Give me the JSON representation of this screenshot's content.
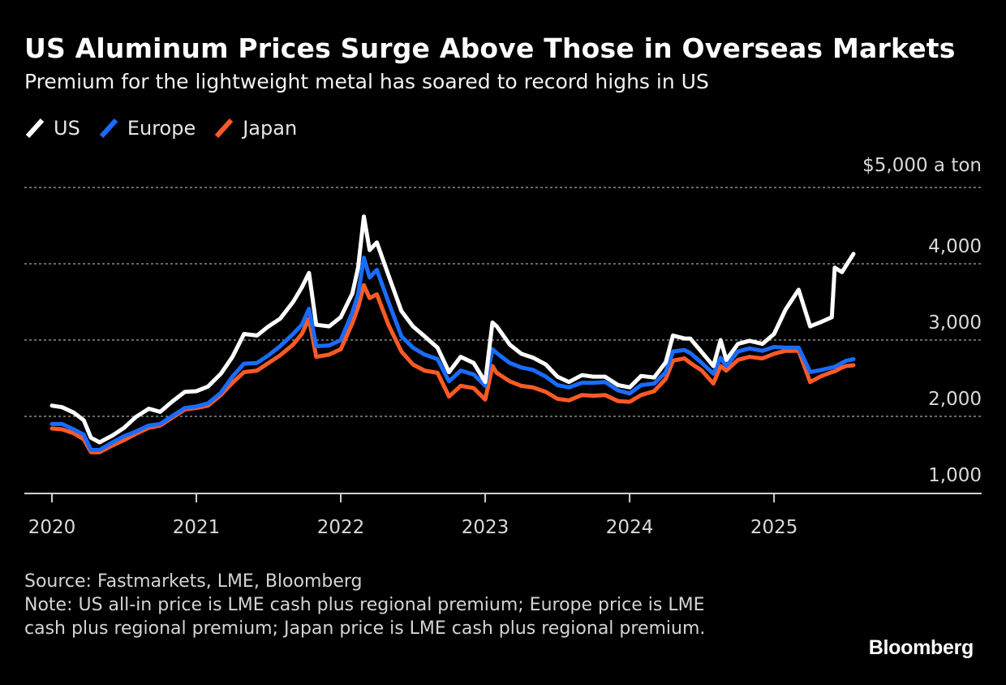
{
  "header": {
    "title": "US Aluminum Prices Surge Above Those in Overseas Markets",
    "subtitle": "Premium for the lightweight metal has soared to record highs in US"
  },
  "footer": {
    "source": "Source: Fastmarkets, LME, Bloomberg",
    "note": "Note: US all-in price is LME cash plus regional premium; Europe price is LME cash plus regional premium; Japan price is LME cash plus regional premium.",
    "brand": "Bloomberg"
  },
  "chart_data": {
    "type": "line",
    "title": "US Aluminum Prices Surge Above Those in Overseas Markets",
    "subtitle": "Premium for the lightweight metal has soared to record highs in US",
    "y_unit_label": "$5,000 a ton",
    "ylim": [
      1000,
      5000
    ],
    "y_ticks": [
      {
        "value": 5000,
        "label": ""
      },
      {
        "value": 4000,
        "label": "4,000"
      },
      {
        "value": 3000,
        "label": "3,000"
      },
      {
        "value": 2000,
        "label": "2,000"
      },
      {
        "value": 1000,
        "label": "1,000"
      }
    ],
    "x_ticks": [
      "2020",
      "2021",
      "2022",
      "2023",
      "2024",
      "2025"
    ],
    "xlim": [
      2020.0,
      2025.6
    ],
    "grid": true,
    "legend_position": "top-left",
    "series": [
      {
        "name": "US",
        "color": "#ffffff",
        "points": [
          [
            2020.0,
            2140
          ],
          [
            2020.07,
            2120
          ],
          [
            2020.15,
            2050
          ],
          [
            2020.22,
            1950
          ],
          [
            2020.27,
            1720
          ],
          [
            2020.33,
            1660
          ],
          [
            2020.42,
            1750
          ],
          [
            2020.5,
            1850
          ],
          [
            2020.58,
            1990
          ],
          [
            2020.67,
            2100
          ],
          [
            2020.75,
            2060
          ],
          [
            2020.83,
            2190
          ],
          [
            2020.92,
            2320
          ],
          [
            2021.0,
            2330
          ],
          [
            2021.08,
            2390
          ],
          [
            2021.17,
            2560
          ],
          [
            2021.25,
            2780
          ],
          [
            2021.33,
            3080
          ],
          [
            2021.42,
            3060
          ],
          [
            2021.5,
            3180
          ],
          [
            2021.58,
            3280
          ],
          [
            2021.67,
            3500
          ],
          [
            2021.73,
            3690
          ],
          [
            2021.78,
            3880
          ],
          [
            2021.83,
            3200
          ],
          [
            2021.92,
            3180
          ],
          [
            2022.0,
            3300
          ],
          [
            2022.08,
            3610
          ],
          [
            2022.12,
            3950
          ],
          [
            2022.16,
            4620
          ],
          [
            2022.2,
            4180
          ],
          [
            2022.25,
            4280
          ],
          [
            2022.33,
            3850
          ],
          [
            2022.42,
            3380
          ],
          [
            2022.5,
            3180
          ],
          [
            2022.58,
            3050
          ],
          [
            2022.67,
            2900
          ],
          [
            2022.75,
            2580
          ],
          [
            2022.83,
            2780
          ],
          [
            2022.92,
            2700
          ],
          [
            2023.0,
            2450
          ],
          [
            2023.05,
            3230
          ],
          [
            2023.08,
            3180
          ],
          [
            2023.17,
            2940
          ],
          [
            2023.25,
            2820
          ],
          [
            2023.33,
            2770
          ],
          [
            2023.42,
            2680
          ],
          [
            2023.5,
            2520
          ],
          [
            2023.58,
            2450
          ],
          [
            2023.67,
            2540
          ],
          [
            2023.75,
            2520
          ],
          [
            2023.83,
            2520
          ],
          [
            2023.92,
            2410
          ],
          [
            2024.0,
            2380
          ],
          [
            2024.08,
            2530
          ],
          [
            2024.17,
            2510
          ],
          [
            2024.25,
            2710
          ],
          [
            2024.3,
            3060
          ],
          [
            2024.38,
            3020
          ],
          [
            2024.42,
            3020
          ],
          [
            2024.5,
            2840
          ],
          [
            2024.58,
            2660
          ],
          [
            2024.63,
            3000
          ],
          [
            2024.67,
            2740
          ],
          [
            2024.75,
            2950
          ],
          [
            2024.83,
            2990
          ],
          [
            2024.92,
            2950
          ],
          [
            2025.0,
            3080
          ],
          [
            2025.08,
            3400
          ],
          [
            2025.17,
            3660
          ],
          [
            2025.25,
            3180
          ],
          [
            2025.33,
            3240
          ],
          [
            2025.4,
            3300
          ],
          [
            2025.42,
            3950
          ],
          [
            2025.47,
            3890
          ],
          [
            2025.5,
            3980
          ],
          [
            2025.55,
            4130
          ]
        ]
      },
      {
        "name": "Europe",
        "color": "#1a6cff",
        "points": [
          [
            2020.0,
            1900
          ],
          [
            2020.07,
            1900
          ],
          [
            2020.15,
            1830
          ],
          [
            2020.22,
            1760
          ],
          [
            2020.27,
            1560
          ],
          [
            2020.33,
            1560
          ],
          [
            2020.42,
            1660
          ],
          [
            2020.5,
            1740
          ],
          [
            2020.58,
            1800
          ],
          [
            2020.67,
            1880
          ],
          [
            2020.75,
            1900
          ],
          [
            2020.83,
            2000
          ],
          [
            2020.92,
            2110
          ],
          [
            2021.0,
            2130
          ],
          [
            2021.08,
            2170
          ],
          [
            2021.17,
            2310
          ],
          [
            2021.25,
            2520
          ],
          [
            2021.33,
            2690
          ],
          [
            2021.42,
            2700
          ],
          [
            2021.5,
            2800
          ],
          [
            2021.58,
            2920
          ],
          [
            2021.67,
            3080
          ],
          [
            2021.73,
            3200
          ],
          [
            2021.78,
            3410
          ],
          [
            2021.83,
            2920
          ],
          [
            2021.92,
            2930
          ],
          [
            2022.0,
            3000
          ],
          [
            2022.08,
            3360
          ],
          [
            2022.12,
            3600
          ],
          [
            2022.16,
            4080
          ],
          [
            2022.2,
            3820
          ],
          [
            2022.25,
            3920
          ],
          [
            2022.33,
            3500
          ],
          [
            2022.42,
            3050
          ],
          [
            2022.5,
            2900
          ],
          [
            2022.58,
            2810
          ],
          [
            2022.67,
            2750
          ],
          [
            2022.75,
            2460
          ],
          [
            2022.83,
            2600
          ],
          [
            2022.92,
            2550
          ],
          [
            2023.0,
            2400
          ],
          [
            2023.05,
            2880
          ],
          [
            2023.08,
            2830
          ],
          [
            2023.17,
            2700
          ],
          [
            2023.25,
            2640
          ],
          [
            2023.33,
            2610
          ],
          [
            2023.42,
            2520
          ],
          [
            2023.5,
            2410
          ],
          [
            2023.58,
            2380
          ],
          [
            2023.67,
            2440
          ],
          [
            2023.75,
            2440
          ],
          [
            2023.83,
            2450
          ],
          [
            2023.92,
            2340
          ],
          [
            2024.0,
            2300
          ],
          [
            2024.08,
            2410
          ],
          [
            2024.17,
            2430
          ],
          [
            2024.25,
            2580
          ],
          [
            2024.3,
            2850
          ],
          [
            2024.38,
            2870
          ],
          [
            2024.42,
            2830
          ],
          [
            2024.5,
            2700
          ],
          [
            2024.58,
            2560
          ],
          [
            2024.63,
            2770
          ],
          [
            2024.67,
            2660
          ],
          [
            2024.75,
            2850
          ],
          [
            2024.83,
            2890
          ],
          [
            2024.92,
            2860
          ],
          [
            2025.0,
            2910
          ],
          [
            2025.08,
            2900
          ],
          [
            2025.17,
            2900
          ],
          [
            2025.25,
            2580
          ],
          [
            2025.33,
            2610
          ],
          [
            2025.4,
            2640
          ],
          [
            2025.42,
            2650
          ],
          [
            2025.47,
            2700
          ],
          [
            2025.5,
            2730
          ],
          [
            2025.55,
            2750
          ]
        ]
      },
      {
        "name": "Japan",
        "color": "#ff5a26",
        "points": [
          [
            2020.0,
            1840
          ],
          [
            2020.07,
            1830
          ],
          [
            2020.15,
            1780
          ],
          [
            2020.22,
            1700
          ],
          [
            2020.27,
            1530
          ],
          [
            2020.33,
            1530
          ],
          [
            2020.42,
            1620
          ],
          [
            2020.5,
            1690
          ],
          [
            2020.58,
            1770
          ],
          [
            2020.67,
            1850
          ],
          [
            2020.75,
            1880
          ],
          [
            2020.83,
            1980
          ],
          [
            2020.92,
            2090
          ],
          [
            2021.0,
            2110
          ],
          [
            2021.08,
            2140
          ],
          [
            2021.17,
            2280
          ],
          [
            2021.25,
            2440
          ],
          [
            2021.33,
            2580
          ],
          [
            2021.42,
            2600
          ],
          [
            2021.5,
            2700
          ],
          [
            2021.58,
            2800
          ],
          [
            2021.67,
            2940
          ],
          [
            2021.73,
            3080
          ],
          [
            2021.78,
            3280
          ],
          [
            2021.83,
            2780
          ],
          [
            2021.92,
            2810
          ],
          [
            2022.0,
            2880
          ],
          [
            2022.08,
            3220
          ],
          [
            2022.12,
            3430
          ],
          [
            2022.16,
            3720
          ],
          [
            2022.2,
            3550
          ],
          [
            2022.25,
            3600
          ],
          [
            2022.33,
            3200
          ],
          [
            2022.42,
            2850
          ],
          [
            2022.5,
            2680
          ],
          [
            2022.58,
            2600
          ],
          [
            2022.67,
            2570
          ],
          [
            2022.75,
            2260
          ],
          [
            2022.83,
            2400
          ],
          [
            2022.92,
            2370
          ],
          [
            2023.0,
            2220
          ],
          [
            2023.05,
            2660
          ],
          [
            2023.08,
            2570
          ],
          [
            2023.17,
            2460
          ],
          [
            2023.25,
            2400
          ],
          [
            2023.33,
            2380
          ],
          [
            2023.42,
            2320
          ],
          [
            2023.5,
            2230
          ],
          [
            2023.58,
            2210
          ],
          [
            2023.67,
            2280
          ],
          [
            2023.75,
            2270
          ],
          [
            2023.83,
            2280
          ],
          [
            2023.92,
            2200
          ],
          [
            2024.0,
            2190
          ],
          [
            2024.08,
            2280
          ],
          [
            2024.17,
            2330
          ],
          [
            2024.25,
            2490
          ],
          [
            2024.3,
            2730
          ],
          [
            2024.38,
            2760
          ],
          [
            2024.42,
            2700
          ],
          [
            2024.5,
            2600
          ],
          [
            2024.58,
            2430
          ],
          [
            2024.63,
            2660
          ],
          [
            2024.67,
            2600
          ],
          [
            2024.75,
            2740
          ],
          [
            2024.83,
            2780
          ],
          [
            2024.92,
            2760
          ],
          [
            2025.0,
            2820
          ],
          [
            2025.08,
            2860
          ],
          [
            2025.17,
            2860
          ],
          [
            2025.25,
            2450
          ],
          [
            2025.33,
            2530
          ],
          [
            2025.4,
            2580
          ],
          [
            2025.42,
            2590
          ],
          [
            2025.47,
            2640
          ],
          [
            2025.5,
            2660
          ],
          [
            2025.55,
            2670
          ]
        ]
      }
    ]
  }
}
